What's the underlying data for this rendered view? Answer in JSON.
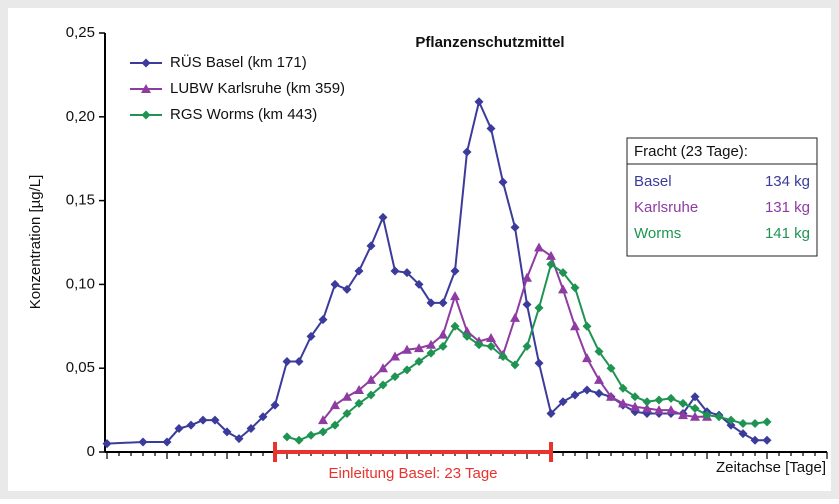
{
  "chart_data": {
    "type": "line",
    "title": "Pflanzenschutzmittel",
    "ylabel": "Konzentration [µg/L]",
    "xlabel": "Zeitachse [Tage]",
    "xlim": [
      0,
      60
    ],
    "xticks": [
      0,
      1,
      2,
      3,
      4,
      5,
      6,
      7,
      8,
      9,
      10,
      11,
      12,
      13,
      14,
      15,
      16,
      17,
      18,
      19,
      20,
      21,
      22,
      23,
      24,
      25,
      26,
      27,
      28,
      29,
      30,
      31,
      32,
      33,
      34,
      35,
      36,
      37,
      38,
      39,
      40,
      41,
      42,
      43,
      44,
      45,
      46,
      47,
      48,
      49,
      50,
      51,
      52,
      53,
      54,
      55,
      56,
      57,
      58,
      59,
      60
    ],
    "ylim": [
      0,
      0.25
    ],
    "yticks": [
      0,
      {
        "value": 0.05,
        "label": "0,05"
      },
      {
        "value": 0.1,
        "label": "0,10"
      },
      {
        "value": 0.15,
        "label": "0,15"
      },
      {
        "value": 0.2,
        "label": "0,20"
      },
      {
        "value": 0.25,
        "label": "0,25"
      }
    ],
    "legend": "upper left",
    "series": [
      {
        "name": "RÜS Basel (km 171)",
        "color": "#3b3b9c",
        "marker": "diamond",
        "x": [
          0,
          3,
          5,
          6,
          7,
          8,
          9,
          10,
          11,
          12,
          13,
          14,
          15,
          16,
          17,
          18,
          19,
          20,
          21,
          22,
          23,
          24,
          25,
          26,
          27,
          28,
          29,
          30,
          31,
          32,
          33,
          34,
          35,
          36,
          37,
          38,
          39,
          40,
          41,
          42,
          43,
          44,
          45,
          46,
          47,
          48,
          49,
          50,
          51,
          52,
          53,
          54,
          55
        ],
        "values": [
          0.005,
          0.006,
          0.006,
          0.014,
          0.016,
          0.019,
          0.019,
          0.012,
          0.008,
          0.014,
          0.021,
          0.028,
          0.054,
          0.054,
          0.069,
          0.079,
          0.1,
          0.097,
          0.108,
          0.123,
          0.14,
          0.108,
          0.107,
          0.1,
          0.089,
          0.089,
          0.108,
          0.179,
          0.209,
          0.193,
          0.161,
          0.134,
          0.088,
          0.053,
          0.023,
          0.03,
          0.034,
          0.037,
          0.035,
          0.033,
          0.028,
          0.024,
          0.023,
          0.023,
          0.023,
          0.023,
          0.033,
          0.024,
          0.022,
          0.016,
          0.011,
          0.007,
          0.007
        ]
      },
      {
        "name": "LUBW Karlsruhe (km 359)",
        "color": "#8e3ca2",
        "marker": "triangle",
        "x": [
          18,
          19,
          20,
          21,
          22,
          23,
          24,
          25,
          26,
          27,
          28,
          29,
          30,
          31,
          32,
          33,
          34,
          35,
          36,
          37,
          38,
          39,
          40,
          41,
          42,
          43,
          44,
          45,
          46,
          47,
          48,
          49,
          50
        ],
        "values": [
          0.019,
          0.028,
          0.033,
          0.037,
          0.043,
          0.05,
          0.057,
          0.061,
          0.062,
          0.064,
          0.07,
          0.093,
          0.072,
          0.066,
          0.068,
          0.058,
          0.08,
          0.104,
          0.122,
          0.117,
          0.097,
          0.075,
          0.056,
          0.043,
          0.033,
          0.029,
          0.027,
          0.026,
          0.025,
          0.025,
          0.022,
          0.021,
          0.021
        ]
      },
      {
        "name": "RGS Worms (km 443)",
        "color": "#1f9452",
        "marker": "diamond",
        "x": [
          15,
          16,
          17,
          18,
          19,
          20,
          21,
          22,
          23,
          24,
          25,
          26,
          27,
          28,
          29,
          30,
          31,
          32,
          33,
          34,
          35,
          36,
          37,
          38,
          39,
          40,
          41,
          42,
          43,
          44,
          45,
          46,
          47,
          48,
          49,
          50,
          51,
          52,
          53,
          54,
          55
        ],
        "values": [
          0.009,
          0.007,
          0.01,
          0.012,
          0.016,
          0.023,
          0.029,
          0.034,
          0.04,
          0.045,
          0.049,
          0.054,
          0.059,
          0.063,
          0.075,
          0.069,
          0.064,
          0.063,
          0.057,
          0.052,
          0.063,
          0.086,
          0.112,
          0.107,
          0.098,
          0.075,
          0.06,
          0.05,
          0.038,
          0.033,
          0.03,
          0.031,
          0.032,
          0.029,
          0.026,
          0.022,
          0.021,
          0.019,
          0.017,
          0.017,
          0.018
        ]
      }
    ],
    "span": {
      "range": [
        14,
        37
      ],
      "label": "Einleitung Basel: 23 Tage",
      "color": "#e8332e"
    },
    "fracht": {
      "title": "Fracht  (23 Tage):",
      "rows": [
        [
          "Basel",
          "134 kg"
        ],
        [
          "Karlsruhe",
          "131 kg"
        ],
        [
          "Worms",
          "141 kg"
        ]
      ]
    }
  }
}
